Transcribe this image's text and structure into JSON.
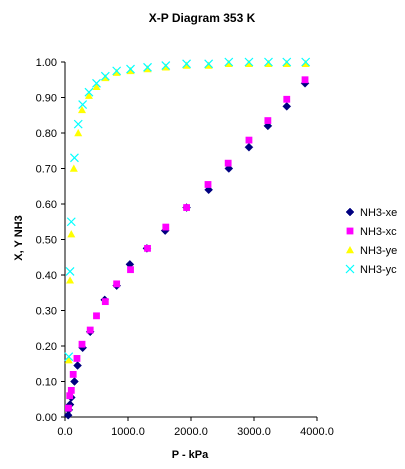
{
  "chart_data": {
    "type": "scatter",
    "title": "X-P Diagram 353 K",
    "xlabel": "P - kPa",
    "ylabel": "X, Y NH3",
    "xlim": [
      0,
      4000
    ],
    "ylim": [
      0,
      1.0
    ],
    "x_ticks": [
      "0.0",
      "1000.0",
      "2000.0",
      "3000.0",
      "4000.0"
    ],
    "y_ticks": [
      "0.00",
      "0.10",
      "0.20",
      "0.30",
      "0.40",
      "0.50",
      "0.60",
      "0.70",
      "0.80",
      "0.90",
      "1.00"
    ],
    "grid": false,
    "legend_position": "right",
    "series": [
      {
        "name": "NH3-xe",
        "marker": "diamond",
        "color": "#000080",
        "points": [
          [
            50,
            0.005
          ],
          [
            60,
            0.02
          ],
          [
            80,
            0.035
          ],
          [
            100,
            0.055
          ],
          [
            150,
            0.1
          ],
          [
            200,
            0.145
          ],
          [
            280,
            0.195
          ],
          [
            400,
            0.24
          ],
          [
            630,
            0.33
          ],
          [
            820,
            0.37
          ],
          [
            1030,
            0.43
          ],
          [
            1300,
            0.475
          ],
          [
            1590,
            0.525
          ],
          [
            1930,
            0.59
          ],
          [
            2280,
            0.64
          ],
          [
            2600,
            0.7
          ],
          [
            2920,
            0.76
          ],
          [
            3220,
            0.82
          ],
          [
            3520,
            0.875
          ],
          [
            3810,
            0.94
          ]
        ]
      },
      {
        "name": "NH3-xc",
        "marker": "square",
        "color": "#ff00ff",
        "points": [
          [
            55,
            0.025
          ],
          [
            75,
            0.06
          ],
          [
            100,
            0.075
          ],
          [
            130,
            0.12
          ],
          [
            190,
            0.165
          ],
          [
            270,
            0.205
          ],
          [
            400,
            0.245
          ],
          [
            500,
            0.285
          ],
          [
            640,
            0.325
          ],
          [
            820,
            0.375
          ],
          [
            1040,
            0.415
          ],
          [
            1310,
            0.475
          ],
          [
            1600,
            0.535
          ],
          [
            1930,
            0.59
          ],
          [
            2270,
            0.655
          ],
          [
            2590,
            0.715
          ],
          [
            2920,
            0.78
          ],
          [
            3220,
            0.835
          ],
          [
            3520,
            0.895
          ],
          [
            3810,
            0.95
          ]
        ]
      },
      {
        "name": "NH3-ye",
        "marker": "triangle",
        "color": "#ffff00",
        "points": [
          [
            60,
            0.16
          ],
          [
            80,
            0.385
          ],
          [
            100,
            0.515
          ],
          [
            140,
            0.7
          ],
          [
            210,
            0.8
          ],
          [
            270,
            0.865
          ],
          [
            380,
            0.905
          ],
          [
            500,
            0.93
          ],
          [
            640,
            0.955
          ],
          [
            820,
            0.97
          ],
          [
            1040,
            0.975
          ],
          [
            1310,
            0.98
          ],
          [
            1600,
            0.985
          ],
          [
            1930,
            0.99
          ],
          [
            2280,
            0.99
          ],
          [
            2600,
            0.995
          ],
          [
            2920,
            0.995
          ],
          [
            3230,
            0.995
          ],
          [
            3520,
            0.995
          ],
          [
            3820,
            0.995
          ]
        ]
      },
      {
        "name": "NH3-yc",
        "marker": "x",
        "color": "#00ffff",
        "points": [
          [
            60,
            0.17
          ],
          [
            80,
            0.41
          ],
          [
            100,
            0.55
          ],
          [
            150,
            0.73
          ],
          [
            210,
            0.825
          ],
          [
            280,
            0.88
          ],
          [
            380,
            0.915
          ],
          [
            500,
            0.94
          ],
          [
            640,
            0.96
          ],
          [
            820,
            0.975
          ],
          [
            1040,
            0.98
          ],
          [
            1310,
            0.985
          ],
          [
            1600,
            0.99
          ],
          [
            1930,
            0.995
          ],
          [
            2280,
            0.995
          ],
          [
            2600,
            1.0
          ],
          [
            2920,
            1.0
          ],
          [
            3230,
            1.0
          ],
          [
            3520,
            1.0
          ],
          [
            3820,
            1.0
          ]
        ]
      }
    ]
  }
}
